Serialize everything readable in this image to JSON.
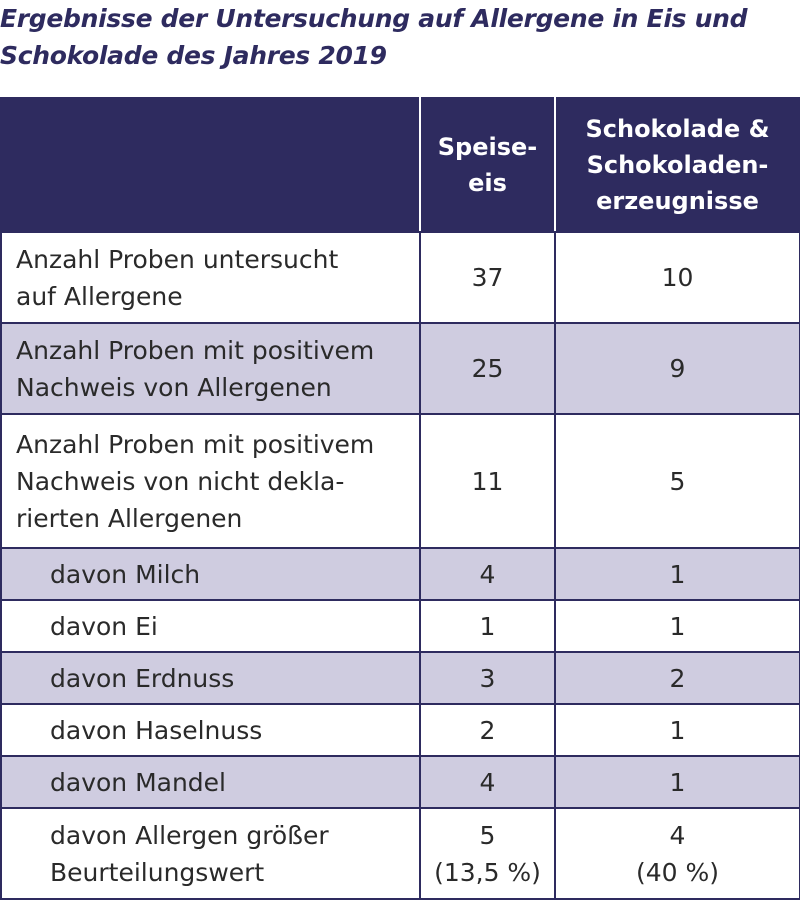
{
  "title": {
    "line1": "Ergebnisse der Untersuchung auf Allergene in Eis und",
    "line2": "Schokolade des Jahres 2019"
  },
  "header": {
    "col1": "",
    "col2": [
      "Speise-",
      "eis"
    ],
    "col3": [
      "Schokolade &",
      "Schokoladen-",
      "erzeugnisse"
    ]
  },
  "rows": [
    {
      "label": [
        "Anzahl Proben untersucht",
        "auf Allergene"
      ],
      "speiseeis": [
        "37"
      ],
      "schokolade": [
        "10"
      ]
    },
    {
      "label": [
        "Anzahl Proben mit positivem",
        "Nachweis von Allergenen"
      ],
      "speiseeis": [
        "25"
      ],
      "schokolade": [
        "9"
      ]
    },
    {
      "label": [
        "Anzahl Proben mit positivem",
        "Nachweis von nicht dekla-",
        "rierten Allergenen"
      ],
      "speiseeis": [
        "11"
      ],
      "schokolade": [
        "5"
      ]
    },
    {
      "label": [
        "davon Milch"
      ],
      "speiseeis": [
        "4"
      ],
      "schokolade": [
        "1"
      ]
    },
    {
      "label": [
        "davon Ei"
      ],
      "speiseeis": [
        "1"
      ],
      "schokolade": [
        "1"
      ]
    },
    {
      "label": [
        "davon Erdnuss"
      ],
      "speiseeis": [
        "3"
      ],
      "schokolade": [
        "2"
      ]
    },
    {
      "label": [
        "davon Haselnuss"
      ],
      "speiseeis": [
        "2"
      ],
      "schokolade": [
        "1"
      ]
    },
    {
      "label": [
        "davon Mandel"
      ],
      "speiseeis": [
        "4"
      ],
      "schokolade": [
        "1"
      ]
    },
    {
      "label": [
        "davon Allergen größer",
        "Beurteilungswert"
      ],
      "speiseeis": [
        "5",
        "(13,5 %)"
      ],
      "schokolade": [
        "4",
        "(40 %)"
      ]
    }
  ],
  "colors": {
    "header_bg": "#2e2b5f",
    "band_bg": "#cfcce0",
    "text": "#2a2a2a"
  }
}
